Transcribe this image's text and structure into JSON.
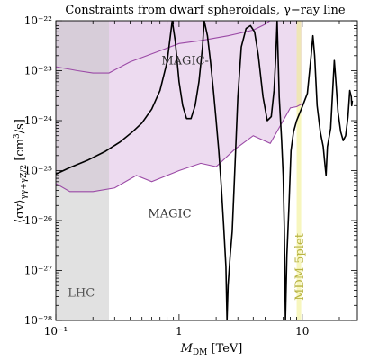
{
  "chart_data": {
    "type": "line",
    "title": "Constraints from dwarf spheroidals, γ−ray line",
    "xlabel": "M_DM [TeV]",
    "ylabel": "⟨σv⟩_{γγ+γZ/2} [cm³/s]",
    "xscale": "log",
    "yscale": "log",
    "xlim": [
      0.1,
      28
    ],
    "ylim": [
      1e-28,
      1e-22
    ],
    "x_ticks": [
      {
        "value": 0.1,
        "label": "10⁻¹"
      },
      {
        "value": 1,
        "label": "1"
      },
      {
        "value": 10,
        "label": "10"
      }
    ],
    "y_ticks": [
      {
        "value": 1e-28,
        "label": "10⁻²⁸"
      },
      {
        "value": 1e-27,
        "label": "10⁻²⁷"
      },
      {
        "value": 1e-26,
        "label": "10⁻²⁶"
      },
      {
        "value": 1e-25,
        "label": "10⁻²⁵"
      },
      {
        "value": 1e-24,
        "label": "10⁻²⁴"
      },
      {
        "value": 1e-23,
        "label": "10⁻²³"
      },
      {
        "value": 1e-22,
        "label": "10⁻²²"
      }
    ],
    "grid": false,
    "regions": [
      {
        "name": "LHC",
        "x_range": [
          0.1,
          0.27
        ],
        "color": "#c8c8c8"
      },
      {
        "name": "MDM 5plet",
        "x_range": [
          9.0,
          9.8
        ],
        "color": "#f0ee88"
      }
    ],
    "bands": [
      {
        "name": "MAGIC-",
        "fill": "#d4a6d8",
        "stroke": "#9b4aa6",
        "points": [
          [
            0.1,
            1.2e-23
          ],
          [
            0.15,
            1e-23
          ],
          [
            0.2,
            9e-24
          ],
          [
            0.27,
            9e-24
          ],
          [
            0.4,
            1.5e-23
          ],
          [
            0.7,
            2.5e-23
          ],
          [
            1.0,
            3.5e-23
          ],
          [
            1.5,
            4e-23
          ],
          [
            2.5,
            5e-23
          ],
          [
            4.0,
            6.5e-23
          ],
          [
            5.0,
            8.5e-23
          ],
          [
            6.0,
            1.2e-22
          ]
        ]
      },
      {
        "name": "MAGIC",
        "fill": "#ebd7ee",
        "stroke": "#9b4aa6",
        "points": [
          [
            0.1,
            5.5e-26
          ],
          [
            0.13,
            3.8e-26
          ],
          [
            0.2,
            3.8e-26
          ],
          [
            0.3,
            4.5e-26
          ],
          [
            0.45,
            8e-26
          ],
          [
            0.6,
            6e-26
          ],
          [
            1.0,
            1e-25
          ],
          [
            1.5,
            1.4e-25
          ],
          [
            2.0,
            1.2e-25
          ],
          [
            2.8,
            2.6e-25
          ],
          [
            4.0,
            5e-25
          ],
          [
            5.5,
            3.5e-25
          ],
          [
            7.0,
            1e-24
          ],
          [
            8.0,
            1.8e-24
          ],
          [
            9.0,
            1.9e-24
          ],
          [
            9.7,
            2.1e-24
          ],
          [
            10.0,
            2.2e-24
          ]
        ]
      }
    ],
    "series": [
      {
        "color": "#000000",
        "points": [
          [
            0.1,
            8.5e-26
          ],
          [
            0.13,
            1.15e-25
          ],
          [
            0.18,
            1.6e-25
          ],
          [
            0.25,
            2.4e-25
          ],
          [
            0.33,
            3.7e-25
          ],
          [
            0.42,
            6e-25
          ],
          [
            0.5,
            9e-25
          ],
          [
            0.6,
            1.7e-24
          ],
          [
            0.7,
            4e-24
          ],
          [
            0.8,
            1.5e-23
          ],
          [
            0.88,
            1e-22
          ],
          [
            0.93,
            4e-23
          ],
          [
            1.0,
            6e-24
          ],
          [
            1.07,
            2e-24
          ],
          [
            1.15,
            1.1e-24
          ],
          [
            1.25,
            1.1e-24
          ],
          [
            1.35,
            2e-24
          ],
          [
            1.45,
            6e-24
          ],
          [
            1.55,
            3e-23
          ],
          [
            1.6,
            1e-22
          ],
          [
            1.7,
            5e-23
          ],
          [
            1.8,
            1.5e-23
          ],
          [
            1.9,
            4e-24
          ],
          [
            2.0,
            1e-24
          ],
          [
            2.1,
            2.5e-25
          ],
          [
            2.2,
            5e-26
          ],
          [
            2.3,
            8e-27
          ],
          [
            2.4,
            1.2e-27
          ],
          [
            2.45,
            1e-28
          ],
          [
            2.5,
            5e-28
          ],
          [
            2.6,
            2e-27
          ],
          [
            2.7,
            6e-27
          ],
          [
            2.8,
            5e-26
          ],
          [
            3.0,
            3e-24
          ],
          [
            3.2,
            3e-23
          ],
          [
            3.5,
            7e-23
          ],
          [
            3.8,
            8e-23
          ],
          [
            4.1,
            6e-23
          ],
          [
            4.4,
            2e-23
          ],
          [
            4.8,
            3e-24
          ],
          [
            5.2,
            1e-24
          ],
          [
            5.6,
            1.2e-24
          ],
          [
            5.9,
            4e-24
          ],
          [
            6.1,
            2e-23
          ],
          [
            6.25,
            1e-22
          ],
          [
            6.5,
            3e-24
          ],
          [
            6.8,
            4e-25
          ],
          [
            7.0,
            8e-26
          ],
          [
            7.15,
            7e-27
          ],
          [
            7.3,
            1e-28
          ],
          [
            7.5,
            2e-27
          ],
          [
            7.8,
            2e-26
          ],
          [
            8.1,
            2.5e-25
          ],
          [
            8.5,
            6e-25
          ],
          [
            9.0,
            1e-24
          ],
          [
            10.0,
            1.9e-24
          ],
          [
            11.0,
            3.5e-24
          ],
          [
            11.8,
            2e-23
          ],
          [
            12.2,
            5e-23
          ],
          [
            12.6,
            2e-23
          ],
          [
            13.2,
            2e-24
          ],
          [
            14.0,
            6e-25
          ],
          [
            14.8,
            3e-25
          ],
          [
            15.2,
            1.5e-25
          ],
          [
            15.6,
            8e-26
          ],
          [
            16.0,
            3e-25
          ],
          [
            17.0,
            7e-25
          ],
          [
            18.2,
            1.6e-23
          ],
          [
            18.6,
            8e-24
          ],
          [
            19.5,
            1.5e-24
          ],
          [
            20.5,
            6e-25
          ],
          [
            21.5,
            4e-25
          ],
          [
            22.5,
            5e-25
          ],
          [
            23.5,
            1.2e-24
          ],
          [
            24.3,
            4e-24
          ],
          [
            25.0,
            3e-24
          ],
          [
            25.2,
            2e-24
          ],
          [
            25.5,
            2.5e-24
          ]
        ]
      }
    ]
  }
}
